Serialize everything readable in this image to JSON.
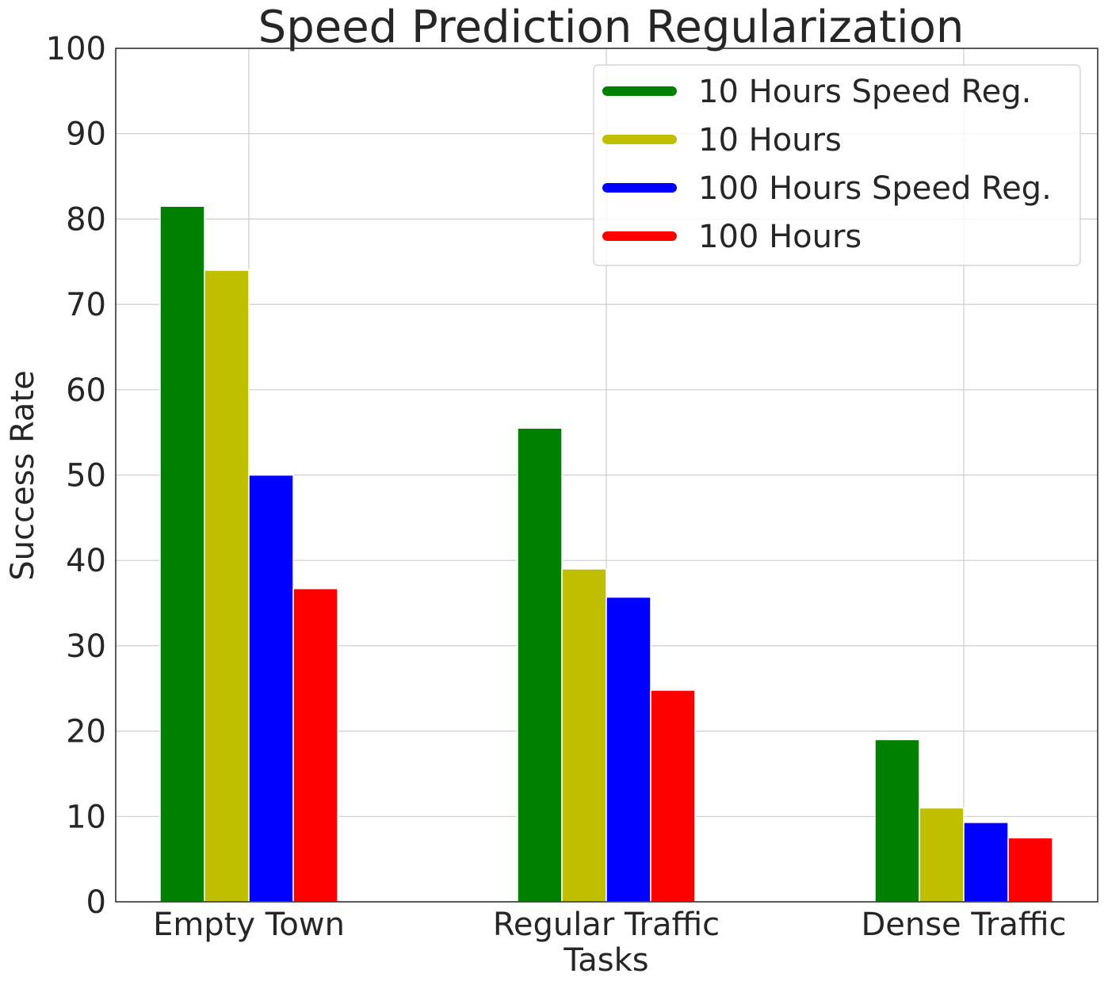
{
  "chart_data": {
    "type": "bar",
    "title": "Speed Prediction Regularization",
    "xlabel": "Tasks",
    "ylabel": "Success Rate",
    "ylim": [
      0,
      100
    ],
    "yticks": [
      "0",
      "10",
      "20",
      "30",
      "40",
      "50",
      "60",
      "70",
      "80",
      "90",
      "100"
    ],
    "categories": [
      "Empty Town",
      "Regular Traffic",
      "Dense Traffic"
    ],
    "series": [
      {
        "name": "10 Hours Speed Reg.",
        "color": "#008000",
        "values": [
          81.5,
          55.5,
          19
        ]
      },
      {
        "name": "10 Hours",
        "color": "#bfbf00",
        "values": [
          74,
          39,
          11
        ]
      },
      {
        "name": "100 Hours Speed Reg.",
        "color": "#0000ff",
        "values": [
          50,
          35.7,
          9.3
        ]
      },
      {
        "name": "100 Hours",
        "color": "#ff0000",
        "values": [
          36.7,
          24.8,
          7.5
        ]
      }
    ],
    "grid": true,
    "legend": "top-right"
  }
}
